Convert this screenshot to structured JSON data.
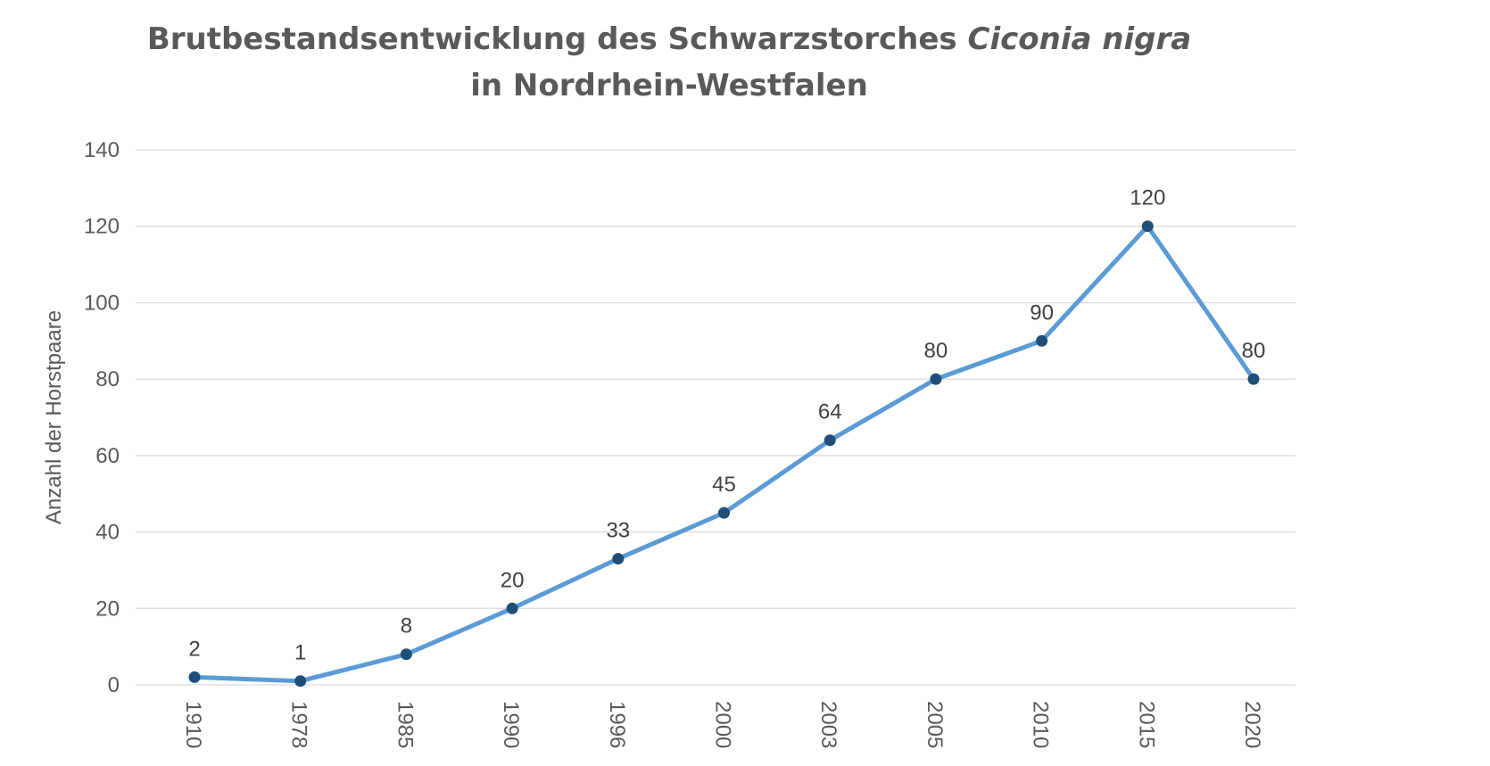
{
  "chart_data": {
    "type": "line",
    "title": {
      "line1_prefix": "Brutbestandsentwicklung des Schwarzstorches ",
      "line1_italic": "Ciconia nigra",
      "line2": "in Nordrhein-Westfalen"
    },
    "ylabel": "Anzahl der Horstpaare",
    "xlabel": "",
    "categories": [
      "1910",
      "1978",
      "1985",
      "1990",
      "1996",
      "2000",
      "2003",
      "2005",
      "2010",
      "2015",
      "2020"
    ],
    "series": [
      {
        "values": [
          2,
          1,
          8,
          20,
          33,
          45,
          64,
          80,
          90,
          120,
          80
        ]
      }
    ],
    "ylim": [
      0,
      140
    ],
    "yticks": [
      0,
      20,
      40,
      60,
      80,
      100,
      120,
      140
    ],
    "grid": true,
    "data_labels": true,
    "colors": {
      "line": "#5b9bd5",
      "marker": "#1f4e79"
    }
  }
}
